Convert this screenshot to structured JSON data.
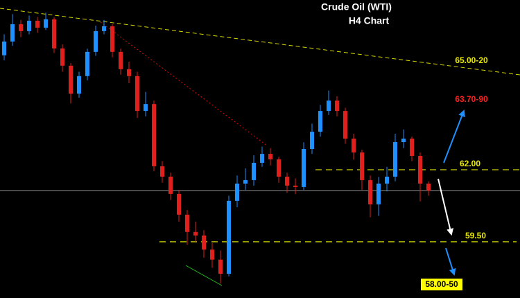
{
  "chart_data": {
    "type": "candlestick",
    "title": "Crude Oil (WTI)",
    "subtitle": "H4 Chart",
    "up_color": "#1e90ff",
    "down_color": "#e0201c",
    "ylim": [
      57.55,
      67.89
    ],
    "open": [
      65.97,
      66.45,
      67.05,
      66.81,
      67.17,
      66.93,
      67.22,
      66.21,
      65.61,
      64.64,
      65.25,
      66.09,
      66.81,
      66.98,
      66.09,
      65.49,
      65.25,
      64.04,
      64.28,
      62.12,
      61.76,
      61.16,
      60.44,
      59.84,
      59.72,
      59.23,
      58.88,
      58.39,
      60.92,
      61.52,
      61.64,
      62.24,
      62.55,
      62.36,
      61.76,
      61.45,
      61.4,
      62.72,
      63.32,
      64.04,
      64.4,
      64.04,
      63.08,
      62.6,
      61.64,
      60.8,
      61.52,
      61.76,
      62.96,
      63.08,
      62.48,
      61.52
    ],
    "high": [
      66.7,
      67.4,
      67.2,
      67.35,
      67.3,
      67.45,
      67.3,
      66.35,
      65.7,
      65.4,
      66.2,
      67.0,
      67.2,
      67.05,
      66.2,
      65.75,
      65.4,
      64.7,
      64.4,
      62.3,
      61.9,
      61.3,
      60.6,
      60.2,
      59.9,
      59.45,
      59.2,
      61.1,
      61.8,
      62.05,
      62.5,
      62.8,
      62.75,
      62.45,
      61.9,
      61.7,
      62.95,
      63.6,
      64.25,
      64.75,
      64.55,
      64.15,
      63.25,
      62.7,
      61.8,
      61.75,
      62.1,
      63.25,
      63.4,
      63.15,
      62.6,
      61.6
    ],
    "low": [
      65.8,
      66.3,
      66.6,
      66.7,
      66.75,
      66.85,
      66.05,
      65.4,
      64.3,
      64.5,
      65.1,
      65.95,
      66.7,
      65.9,
      65.3,
      65.0,
      63.8,
      63.85,
      61.95,
      61.55,
      60.95,
      60.2,
      59.4,
      59.5,
      58.95,
      58.6,
      58.05,
      58.3,
      60.7,
      61.3,
      61.45,
      62.1,
      62.15,
      61.55,
      61.2,
      61.15,
      61.3,
      62.55,
      63.15,
      63.9,
      63.85,
      62.9,
      62.35,
      61.3,
      60.35,
      60.4,
      61.25,
      61.6,
      62.75,
      62.3,
      60.9,
      61.1
    ],
    "close": [
      66.45,
      67.05,
      66.81,
      67.17,
      66.93,
      67.22,
      66.21,
      65.61,
      64.64,
      65.25,
      66.09,
      66.81,
      66.98,
      66.09,
      65.49,
      65.25,
      64.04,
      64.28,
      62.12,
      61.76,
      61.16,
      60.44,
      59.84,
      59.72,
      59.23,
      58.88,
      58.39,
      60.92,
      61.52,
      61.64,
      62.24,
      62.55,
      62.36,
      61.76,
      61.45,
      61.4,
      62.72,
      63.32,
      64.04,
      64.4,
      64.04,
      63.08,
      62.6,
      61.64,
      60.8,
      61.52,
      61.76,
      62.96,
      63.08,
      62.48,
      61.52,
      61.28
    ],
    "levels": [
      {
        "value": 62,
        "label": "62.00"
      },
      {
        "value": 59.5,
        "label": "59.50"
      }
    ],
    "annotations": [
      "65.00-20",
      "63.70-90",
      "58.00-50"
    ]
  }
}
